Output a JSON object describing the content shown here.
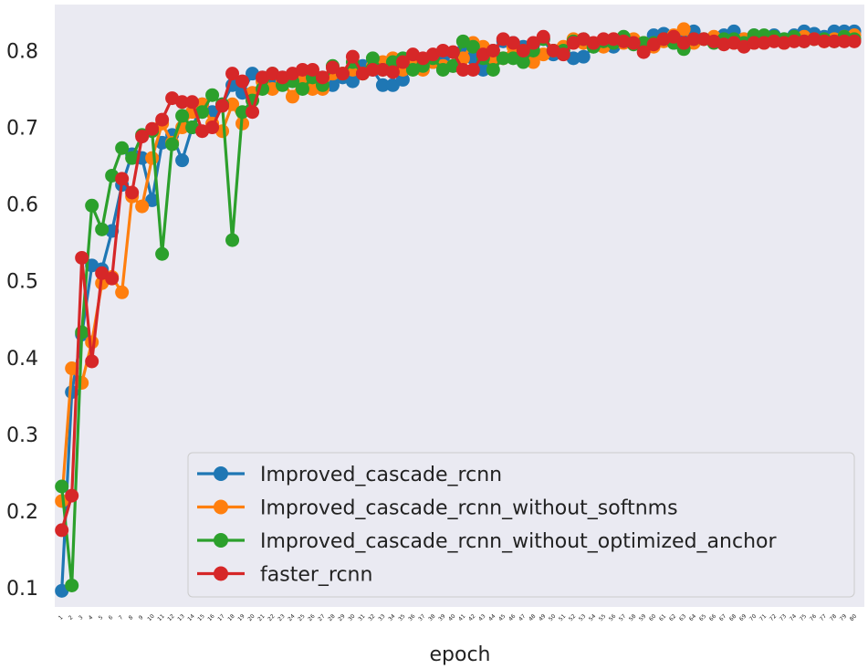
{
  "chart_data": {
    "type": "line",
    "title": "",
    "xlabel": "epoch",
    "ylabel": "",
    "xlim": [
      0.3,
      81.0
    ],
    "ylim": [
      0.075,
      0.86
    ],
    "grid": false,
    "legend_position": "lower-right",
    "x": [
      1,
      2,
      3,
      4,
      5,
      6,
      7,
      8,
      9,
      10,
      11,
      12,
      13,
      14,
      15,
      16,
      17,
      18,
      19,
      20,
      21,
      22,
      23,
      24,
      25,
      26,
      27,
      28,
      29,
      30,
      31,
      32,
      33,
      34,
      35,
      36,
      37,
      38,
      39,
      40,
      41,
      42,
      43,
      44,
      45,
      46,
      47,
      48,
      49,
      50,
      51,
      52,
      53,
      54,
      55,
      56,
      57,
      58,
      59,
      60,
      61,
      62,
      63,
      64,
      65,
      66,
      67,
      68,
      69,
      70,
      71,
      72,
      73,
      74,
      75,
      76,
      77,
      78,
      79,
      80
    ],
    "x_tick_labels": [
      "1",
      "2",
      "3",
      "4",
      "5",
      "6",
      "7",
      "8",
      "9",
      "10",
      "11",
      "12",
      "13",
      "14",
      "15",
      "16",
      "17",
      "18",
      "19",
      "20",
      "21",
      "22",
      "23",
      "24",
      "25",
      "26",
      "27",
      "28",
      "29",
      "30",
      "31",
      "32",
      "33",
      "34",
      "35",
      "36",
      "37",
      "38",
      "39",
      "40",
      "41",
      "42",
      "43",
      "44",
      "45",
      "46",
      "47",
      "48",
      "49",
      "50",
      "51",
      "52",
      "53",
      "54",
      "55",
      "56",
      "57",
      "58",
      "59",
      "60",
      "61",
      "62",
      "63",
      "64",
      "65",
      "66",
      "67",
      "68",
      "69",
      "70",
      "71",
      "72",
      "73",
      "74",
      "75",
      "76",
      "77",
      "78",
      "79",
      "80"
    ],
    "y_ticks": [
      0.1,
      0.2,
      0.3,
      0.4,
      0.5,
      0.6,
      0.7,
      0.8
    ],
    "y_tick_labels": [
      "0.1",
      "0.2",
      "0.3",
      "0.4",
      "0.5",
      "0.6",
      "0.7",
      "0.8"
    ],
    "series": [
      {
        "name": "Improved_cascade_rcnn",
        "color": "#1f77b4",
        "values": [
          0.096,
          0.355,
          0.43,
          0.52,
          0.515,
          0.565,
          0.625,
          0.665,
          0.66,
          0.605,
          0.68,
          0.69,
          0.657,
          0.7,
          0.73,
          0.72,
          0.73,
          0.755,
          0.745,
          0.77,
          0.765,
          0.76,
          0.765,
          0.768,
          0.765,
          0.77,
          0.765,
          0.755,
          0.765,
          0.76,
          0.78,
          0.775,
          0.755,
          0.755,
          0.762,
          0.78,
          0.785,
          0.785,
          0.79,
          0.78,
          0.8,
          0.79,
          0.775,
          0.8,
          0.812,
          0.81,
          0.805,
          0.808,
          0.815,
          0.795,
          0.8,
          0.79,
          0.792,
          0.805,
          0.81,
          0.805,
          0.812,
          0.81,
          0.805,
          0.82,
          0.822,
          0.81,
          0.818,
          0.825,
          0.815,
          0.815,
          0.82,
          0.825,
          0.815,
          0.82,
          0.815,
          0.82,
          0.815,
          0.82,
          0.825,
          0.822,
          0.818,
          0.825,
          0.825,
          0.825
        ]
      },
      {
        "name": "Improved_cascade_rcnn_without_softnms",
        "color": "#ff7f0e",
        "values": [
          0.213,
          0.386,
          0.367,
          0.42,
          0.497,
          0.505,
          0.485,
          0.61,
          0.597,
          0.66,
          0.705,
          0.68,
          0.7,
          0.72,
          0.73,
          0.705,
          0.695,
          0.73,
          0.705,
          0.745,
          0.76,
          0.75,
          0.76,
          0.74,
          0.765,
          0.75,
          0.75,
          0.77,
          0.77,
          0.775,
          0.77,
          0.78,
          0.785,
          0.79,
          0.775,
          0.78,
          0.775,
          0.785,
          0.78,
          0.78,
          0.79,
          0.81,
          0.805,
          0.79,
          0.79,
          0.805,
          0.79,
          0.785,
          0.795,
          0.8,
          0.805,
          0.815,
          0.81,
          0.808,
          0.805,
          0.815,
          0.81,
          0.815,
          0.81,
          0.805,
          0.812,
          0.82,
          0.828,
          0.81,
          0.815,
          0.818,
          0.812,
          0.81,
          0.815,
          0.81,
          0.81,
          0.815,
          0.81,
          0.815,
          0.818,
          0.815,
          0.812,
          0.815,
          0.818,
          0.82
        ]
      },
      {
        "name": "Improved_cascade_rcnn_without_optimized_anchor",
        "color": "#2ca02c",
        "values": [
          0.232,
          0.103,
          0.433,
          0.598,
          0.567,
          0.637,
          0.673,
          0.66,
          0.69,
          0.695,
          0.535,
          0.678,
          0.715,
          0.7,
          0.72,
          0.742,
          0.73,
          0.553,
          0.72,
          0.735,
          0.75,
          0.77,
          0.755,
          0.76,
          0.75,
          0.765,
          0.755,
          0.78,
          0.77,
          0.785,
          0.77,
          0.79,
          0.775,
          0.785,
          0.79,
          0.775,
          0.78,
          0.79,
          0.775,
          0.78,
          0.812,
          0.805,
          0.79,
          0.775,
          0.79,
          0.79,
          0.785,
          0.8,
          0.815,
          0.8,
          0.8,
          0.812,
          0.815,
          0.805,
          0.812,
          0.81,
          0.818,
          0.808,
          0.81,
          0.81,
          0.815,
          0.81,
          0.802,
          0.815,
          0.815,
          0.81,
          0.815,
          0.815,
          0.81,
          0.82,
          0.82,
          0.818,
          0.815,
          0.818,
          0.812,
          0.815,
          0.815,
          0.812,
          0.818,
          0.815
        ]
      },
      {
        "name": "faster_rcnn",
        "color": "#d62728",
        "values": [
          0.175,
          0.22,
          0.53,
          0.395,
          0.51,
          0.503,
          0.633,
          0.615,
          0.688,
          0.698,
          0.71,
          0.738,
          0.733,
          0.733,
          0.695,
          0.7,
          0.728,
          0.77,
          0.76,
          0.72,
          0.765,
          0.77,
          0.765,
          0.77,
          0.775,
          0.775,
          0.765,
          0.778,
          0.77,
          0.792,
          0.77,
          0.775,
          0.775,
          0.772,
          0.785,
          0.795,
          0.79,
          0.795,
          0.8,
          0.798,
          0.775,
          0.775,
          0.795,
          0.8,
          0.815,
          0.81,
          0.8,
          0.81,
          0.818,
          0.8,
          0.795,
          0.81,
          0.815,
          0.81,
          0.815,
          0.815,
          0.812,
          0.81,
          0.798,
          0.808,
          0.815,
          0.818,
          0.81,
          0.815,
          0.815,
          0.812,
          0.808,
          0.81,
          0.805,
          0.81,
          0.81,
          0.812,
          0.81,
          0.812,
          0.812,
          0.815,
          0.812,
          0.812,
          0.812,
          0.812
        ]
      }
    ]
  }
}
